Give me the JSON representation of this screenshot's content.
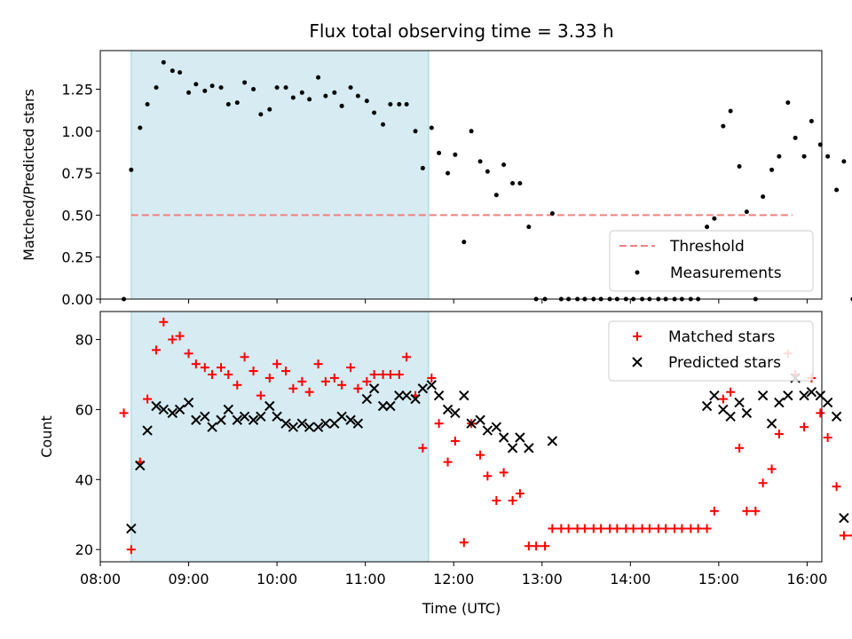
{
  "chart_data": [
    {
      "type": "scatter",
      "title": "Flux total observing time = 3.33 h",
      "xlabel": "",
      "ylabel": "Matched/Predicted stars",
      "xlim": [
        "08:00",
        "16:10"
      ],
      "ylim": [
        0,
        1.48
      ],
      "yticks": [
        "0.00",
        "0.25",
        "0.50",
        "0.75",
        "1.00",
        "1.25"
      ],
      "shaded_interval": [
        "08:21",
        "11:43"
      ],
      "threshold": {
        "name": "Threshold",
        "value": 0.5,
        "color": "#f08080",
        "style": "dashed",
        "x_range": [
          "08:21",
          "15:50"
        ]
      },
      "legend_position": "lower-right",
      "series": [
        {
          "name": "Measurements",
          "marker": "dot",
          "color": "#000000",
          "points": [
            [
              "08:16",
              0.0
            ],
            [
              "08:21",
              0.77
            ],
            [
              "08:27",
              1.02
            ],
            [
              "08:32",
              1.16
            ],
            [
              "08:38",
              1.26
            ],
            [
              "08:43",
              1.41
            ],
            [
              "08:49",
              1.36
            ],
            [
              "08:54",
              1.35
            ],
            [
              "09:00",
              1.23
            ],
            [
              "09:05",
              1.28
            ],
            [
              "09:11",
              1.24
            ],
            [
              "09:16",
              1.27
            ],
            [
              "09:22",
              1.26
            ],
            [
              "09:27",
              1.16
            ],
            [
              "09:33",
              1.17
            ],
            [
              "09:38",
              1.29
            ],
            [
              "09:44",
              1.25
            ],
            [
              "09:49",
              1.1
            ],
            [
              "09:55",
              1.13
            ],
            [
              "10:00",
              1.26
            ],
            [
              "10:06",
              1.26
            ],
            [
              "10:11",
              1.2
            ],
            [
              "10:17",
              1.23
            ],
            [
              "10:22",
              1.19
            ],
            [
              "10:28",
              1.32
            ],
            [
              "10:33",
              1.21
            ],
            [
              "10:39",
              1.23
            ],
            [
              "10:44",
              1.15
            ],
            [
              "10:50",
              1.26
            ],
            [
              "10:55",
              1.21
            ],
            [
              "11:01",
              1.18
            ],
            [
              "11:06",
              1.11
            ],
            [
              "11:12",
              1.04
            ],
            [
              "11:17",
              1.16
            ],
            [
              "11:23",
              1.16
            ],
            [
              "11:28",
              1.16
            ],
            [
              "11:34",
              1.0
            ],
            [
              "11:39",
              0.78
            ],
            [
              "11:45",
              1.02
            ],
            [
              "11:50",
              0.87
            ],
            [
              "11:56",
              0.75
            ],
            [
              "12:01",
              0.86
            ],
            [
              "12:07",
              0.34
            ],
            [
              "12:12",
              1.0
            ],
            [
              "12:18",
              0.82
            ],
            [
              "12:23",
              0.76
            ],
            [
              "12:29",
              0.62
            ],
            [
              "12:34",
              0.8
            ],
            [
              "12:40",
              0.69
            ],
            [
              "12:45",
              0.69
            ],
            [
              "12:51",
              0.43
            ],
            [
              "12:56",
              0.0
            ],
            [
              "13:02",
              0.0
            ],
            [
              "13:07",
              0.51
            ],
            [
              "13:13",
              0.0
            ],
            [
              "13:18",
              0.0
            ],
            [
              "13:24",
              0.0
            ],
            [
              "13:29",
              0.0
            ],
            [
              "13:35",
              0.0
            ],
            [
              "13:40",
              0.0
            ],
            [
              "13:46",
              0.0
            ],
            [
              "13:51",
              0.0
            ],
            [
              "13:57",
              0.0
            ],
            [
              "14:02",
              0.0
            ],
            [
              "14:08",
              0.0
            ],
            [
              "14:13",
              0.0
            ],
            [
              "14:19",
              0.0
            ],
            [
              "14:24",
              0.0
            ],
            [
              "14:30",
              0.0
            ],
            [
              "14:35",
              0.0
            ],
            [
              "14:41",
              0.0
            ],
            [
              "14:46",
              0.0
            ],
            [
              "14:52",
              0.43
            ],
            [
              "14:57",
              0.48
            ],
            [
              "15:03",
              1.03
            ],
            [
              "15:08",
              1.12
            ],
            [
              "15:14",
              0.79
            ],
            [
              "15:19",
              0.52
            ],
            [
              "15:25",
              0.0
            ],
            [
              "15:30",
              0.61
            ],
            [
              "15:36",
              0.77
            ],
            [
              "15:41",
              0.85
            ],
            [
              "15:47",
              1.17
            ],
            [
              "15:52",
              0.96
            ],
            [
              "15:58",
              0.85
            ],
            [
              "16:03",
              1.06
            ],
            [
              "16:09",
              0.92
            ],
            [
              "16:14",
              0.85
            ],
            [
              "16:20",
              0.65
            ],
            [
              "16:25",
              0.82
            ],
            [
              "16:31",
              0.0
            ]
          ]
        }
      ]
    },
    {
      "type": "scatter",
      "title": "",
      "xlabel": "Time (UTC)",
      "ylabel": "Count",
      "xlim": [
        "08:00",
        "16:10"
      ],
      "ylim": [
        16.5,
        88
      ],
      "yticks": [
        "20",
        "40",
        "60",
        "80"
      ],
      "xticks": [
        "08:00",
        "09:00",
        "10:00",
        "11:00",
        "12:00",
        "13:00",
        "14:00",
        "15:00",
        "16:00"
      ],
      "shaded_interval": [
        "08:21",
        "11:43"
      ],
      "legend_position": "top-right",
      "series": [
        {
          "name": "Matched stars",
          "marker": "plus",
          "color": "#ff0000",
          "points": [
            [
              "08:16",
              59
            ],
            [
              "08:21",
              20
            ],
            [
              "08:27",
              45
            ],
            [
              "08:32",
              63
            ],
            [
              "08:38",
              77
            ],
            [
              "08:43",
              85
            ],
            [
              "08:49",
              80
            ],
            [
              "08:54",
              81
            ],
            [
              "09:00",
              76
            ],
            [
              "09:05",
              73
            ],
            [
              "09:11",
              72
            ],
            [
              "09:16",
              70
            ],
            [
              "09:22",
              72
            ],
            [
              "09:27",
              70
            ],
            [
              "09:33",
              67
            ],
            [
              "09:38",
              75
            ],
            [
              "09:44",
              71
            ],
            [
              "09:49",
              64
            ],
            [
              "09:55",
              69
            ],
            [
              "10:00",
              73
            ],
            [
              "10:06",
              71
            ],
            [
              "10:11",
              66
            ],
            [
              "10:17",
              68
            ],
            [
              "10:22",
              65
            ],
            [
              "10:28",
              73
            ],
            [
              "10:33",
              68
            ],
            [
              "10:39",
              69
            ],
            [
              "10:44",
              67
            ],
            [
              "10:50",
              72
            ],
            [
              "10:55",
              66
            ],
            [
              "11:01",
              68
            ],
            [
              "11:06",
              70
            ],
            [
              "11:12",
              70
            ],
            [
              "11:17",
              70
            ],
            [
              "11:23",
              70
            ],
            [
              "11:28",
              75
            ],
            [
              "11:34",
              64
            ],
            [
              "11:39",
              49
            ],
            [
              "11:45",
              69
            ],
            [
              "11:50",
              56
            ],
            [
              "11:56",
              45
            ],
            [
              "12:01",
              51
            ],
            [
              "12:07",
              22
            ],
            [
              "12:12",
              56
            ],
            [
              "12:18",
              47
            ],
            [
              "12:23",
              41
            ],
            [
              "12:29",
              34
            ],
            [
              "12:34",
              42
            ],
            [
              "12:40",
              34
            ],
            [
              "12:45",
              36
            ],
            [
              "12:51",
              21
            ],
            [
              "12:56",
              21
            ],
            [
              "13:02",
              21
            ],
            [
              "13:07",
              26
            ],
            [
              "13:13",
              26
            ],
            [
              "13:18",
              26
            ],
            [
              "13:24",
              26
            ],
            [
              "13:29",
              26
            ],
            [
              "13:35",
              26
            ],
            [
              "13:40",
              26
            ],
            [
              "13:46",
              26
            ],
            [
              "13:51",
              26
            ],
            [
              "13:57",
              26
            ],
            [
              "14:02",
              26
            ],
            [
              "14:08",
              26
            ],
            [
              "14:13",
              26
            ],
            [
              "14:19",
              26
            ],
            [
              "14:24",
              26
            ],
            [
              "14:30",
              26
            ],
            [
              "14:35",
              26
            ],
            [
              "14:41",
              26
            ],
            [
              "14:46",
              26
            ],
            [
              "14:52",
              26
            ],
            [
              "14:57",
              31
            ],
            [
              "15:03",
              63
            ],
            [
              "15:08",
              65
            ],
            [
              "15:14",
              49
            ],
            [
              "15:19",
              31
            ],
            [
              "15:25",
              31
            ],
            [
              "15:30",
              39
            ],
            [
              "15:36",
              43
            ],
            [
              "15:41",
              53
            ],
            [
              "15:47",
              76
            ],
            [
              "15:52",
              70
            ],
            [
              "15:58",
              55
            ],
            [
              "16:03",
              69
            ],
            [
              "16:09",
              59
            ],
            [
              "16:14",
              52
            ],
            [
              "16:20",
              38
            ],
            [
              "16:25",
              24
            ],
            [
              "16:31",
              24
            ]
          ]
        },
        {
          "name": "Predicted stars",
          "marker": "x",
          "color": "#000000",
          "points": [
            [
              "08:21",
              26
            ],
            [
              "08:27",
              44
            ],
            [
              "08:32",
              54
            ],
            [
              "08:38",
              61
            ],
            [
              "08:43",
              60
            ],
            [
              "08:49",
              59
            ],
            [
              "08:54",
              60
            ],
            [
              "09:00",
              62
            ],
            [
              "09:05",
              57
            ],
            [
              "09:11",
              58
            ],
            [
              "09:16",
              55
            ],
            [
              "09:22",
              57
            ],
            [
              "09:27",
              60
            ],
            [
              "09:33",
              57
            ],
            [
              "09:38",
              58
            ],
            [
              "09:44",
              57
            ],
            [
              "09:49",
              58
            ],
            [
              "09:55",
              61
            ],
            [
              "10:00",
              58
            ],
            [
              "10:06",
              56
            ],
            [
              "10:11",
              55
            ],
            [
              "10:17",
              56
            ],
            [
              "10:22",
              55
            ],
            [
              "10:28",
              55
            ],
            [
              "10:33",
              56
            ],
            [
              "10:39",
              56
            ],
            [
              "10:44",
              58
            ],
            [
              "10:50",
              57
            ],
            [
              "10:55",
              56
            ],
            [
              "11:01",
              63
            ],
            [
              "11:06",
              66
            ],
            [
              "11:12",
              61
            ],
            [
              "11:17",
              61
            ],
            [
              "11:23",
              64
            ],
            [
              "11:28",
              64
            ],
            [
              "11:34",
              63
            ],
            [
              "11:39",
              66
            ],
            [
              "11:45",
              67
            ],
            [
              "11:50",
              64
            ],
            [
              "11:56",
              60
            ],
            [
              "12:01",
              59
            ],
            [
              "12:07",
              64
            ],
            [
              "12:12",
              56
            ],
            [
              "12:18",
              57
            ],
            [
              "12:23",
              54
            ],
            [
              "12:29",
              55
            ],
            [
              "12:34",
              52
            ],
            [
              "12:40",
              49
            ],
            [
              "12:45",
              52
            ],
            [
              "12:51",
              49
            ],
            [
              "13:07",
              51
            ],
            [
              "14:52",
              61
            ],
            [
              "14:57",
              64
            ],
            [
              "15:03",
              60
            ],
            [
              "15:08",
              58
            ],
            [
              "15:14",
              62
            ],
            [
              "15:19",
              59
            ],
            [
              "15:30",
              64
            ],
            [
              "15:36",
              56
            ],
            [
              "15:41",
              62
            ],
            [
              "15:47",
              64
            ],
            [
              "15:52",
              69
            ],
            [
              "15:58",
              64
            ],
            [
              "16:03",
              65
            ],
            [
              "16:09",
              64
            ],
            [
              "16:14",
              62
            ],
            [
              "16:20",
              58
            ],
            [
              "16:25",
              29
            ]
          ]
        }
      ]
    }
  ]
}
